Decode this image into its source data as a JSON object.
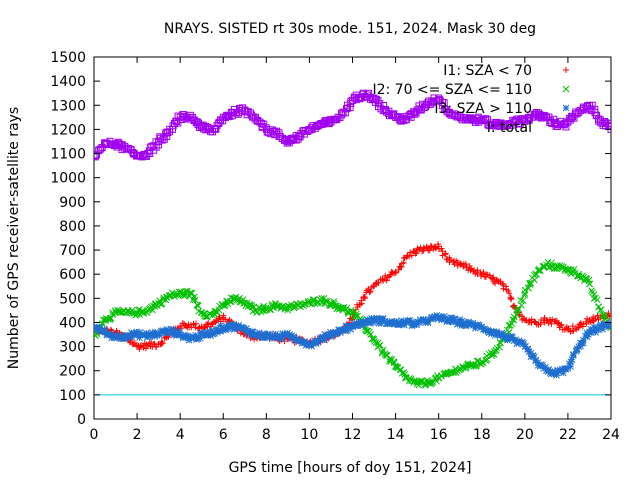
{
  "chart_data": {
    "type": "scatter",
    "title": "NRAYS. SISTED rt 30s mode. 151, 2024. Mask 30 deg",
    "xlabel": "GPS time [hours of doy 151, 2024]",
    "ylabel": "Number of GPS receiver-satellite rays",
    "xlim": [
      0,
      24
    ],
    "ylim": [
      0,
      1500
    ],
    "x_ticks": [
      "0",
      "2",
      "4",
      "6",
      "8",
      "10",
      "12",
      "14",
      "16",
      "18",
      "20",
      "22",
      "24"
    ],
    "y_ticks": [
      "0",
      "100",
      "200",
      "300",
      "400",
      "500",
      "600",
      "700",
      "800",
      "900",
      "1000",
      "1100",
      "1200",
      "1300",
      "1400",
      "1500"
    ],
    "legend_position": "top-right",
    "reference_line": {
      "y": 100,
      "color": "#00c8e0"
    },
    "series": [
      {
        "name": "I1: SZA < 70",
        "marker": "+",
        "color": "#ff0000",
        "x": [
          0,
          0.5,
          1,
          1.5,
          2,
          2.5,
          3,
          3.5,
          4,
          4.5,
          5,
          5.5,
          6,
          6.5,
          7,
          7.5,
          8,
          8.5,
          9,
          9.5,
          10,
          10.5,
          11,
          11.5,
          12,
          12.5,
          13,
          13.5,
          14,
          14.5,
          15,
          15.5,
          16,
          16.5,
          17,
          17.5,
          18,
          18.5,
          19,
          19.5,
          20,
          20.5,
          21,
          21.5,
          22,
          22.5,
          23,
          23.5,
          24
        ],
        "y": [
          360,
          365,
          355,
          340,
          300,
          305,
          310,
          350,
          385,
          390,
          380,
          395,
          420,
          390,
          350,
          340,
          345,
          335,
          330,
          325,
          315,
          330,
          345,
          365,
          420,
          505,
          550,
          580,
          610,
          670,
          700,
          705,
          715,
          650,
          640,
          620,
          600,
          580,
          555,
          470,
          410,
          400,
          410,
          400,
          370,
          380,
          410,
          420,
          430
        ]
      },
      {
        "name": "I2: 70 <= SZA <= 110",
        "marker": "x",
        "color": "#00c000",
        "x": [
          0,
          0.5,
          1,
          1.5,
          2,
          2.5,
          3,
          3.5,
          4,
          4.5,
          5,
          5.5,
          6,
          6.5,
          7,
          7.5,
          8,
          8.5,
          9,
          9.5,
          10,
          10.5,
          11,
          11.5,
          12,
          12.5,
          13,
          13.5,
          14,
          14.5,
          15,
          15.5,
          16,
          16.5,
          17,
          17.5,
          18,
          18.5,
          19,
          19.5,
          20,
          20.5,
          21,
          21.5,
          22,
          22.5,
          23,
          23.5,
          24
        ],
        "y": [
          350,
          410,
          440,
          440,
          440,
          450,
          480,
          510,
          520,
          520,
          440,
          430,
          470,
          500,
          480,
          450,
          460,
          470,
          460,
          470,
          480,
          495,
          480,
          460,
          440,
          390,
          330,
          270,
          220,
          170,
          145,
          150,
          170,
          190,
          210,
          220,
          235,
          270,
          330,
          410,
          520,
          600,
          640,
          630,
          620,
          600,
          560,
          450,
          380
        ]
      },
      {
        "name": "I3: SZA > 110",
        "marker": "*",
        "color": "#1e6fd0",
        "x": [
          0,
          0.5,
          1,
          1.5,
          2,
          2.5,
          3,
          3.5,
          4,
          4.5,
          5,
          5.5,
          6,
          6.5,
          7,
          7.5,
          8,
          8.5,
          9,
          9.5,
          10,
          10.5,
          11,
          11.5,
          12,
          12.5,
          13,
          13.5,
          14,
          14.5,
          15,
          15.5,
          16,
          16.5,
          17,
          17.5,
          18,
          18.5,
          19,
          19.5,
          20,
          20.5,
          21,
          21.5,
          22,
          22.5,
          23,
          23.5,
          24
        ],
        "y": [
          380,
          360,
          340,
          345,
          350,
          345,
          355,
          365,
          350,
          335,
          345,
          360,
          380,
          385,
          370,
          350,
          345,
          340,
          345,
          330,
          310,
          330,
          350,
          370,
          385,
          400,
          410,
          405,
          395,
          400,
          395,
          410,
          420,
          410,
          400,
          390,
          380,
          360,
          345,
          325,
          300,
          240,
          200,
          190,
          210,
          300,
          360,
          380,
          390
        ]
      },
      {
        "name": "I: total",
        "marker": "square",
        "color": "#a000f0",
        "x": [
          0,
          0.5,
          1,
          1.5,
          2,
          2.5,
          3,
          3.5,
          4,
          4.5,
          5,
          5.5,
          6,
          6.5,
          7,
          7.5,
          8,
          8.5,
          9,
          9.5,
          10,
          10.5,
          11,
          11.5,
          12,
          12.5,
          13,
          13.5,
          14,
          14.5,
          15,
          15.5,
          16,
          16.5,
          17,
          17.5,
          18,
          18.5,
          19,
          19.5,
          20,
          20.5,
          21,
          21.5,
          22,
          22.5,
          23,
          23.5,
          24
        ],
        "y": [
          1090,
          1140,
          1140,
          1120,
          1090,
          1100,
          1150,
          1190,
          1250,
          1250,
          1210,
          1190,
          1250,
          1270,
          1280,
          1250,
          1200,
          1180,
          1150,
          1170,
          1200,
          1220,
          1230,
          1260,
          1320,
          1350,
          1330,
          1280,
          1250,
          1240,
          1280,
          1310,
          1330,
          1270,
          1250,
          1240,
          1240,
          1220,
          1220,
          1230,
          1240,
          1260,
          1250,
          1220,
          1230,
          1270,
          1300,
          1240,
          1200
        ]
      }
    ]
  }
}
